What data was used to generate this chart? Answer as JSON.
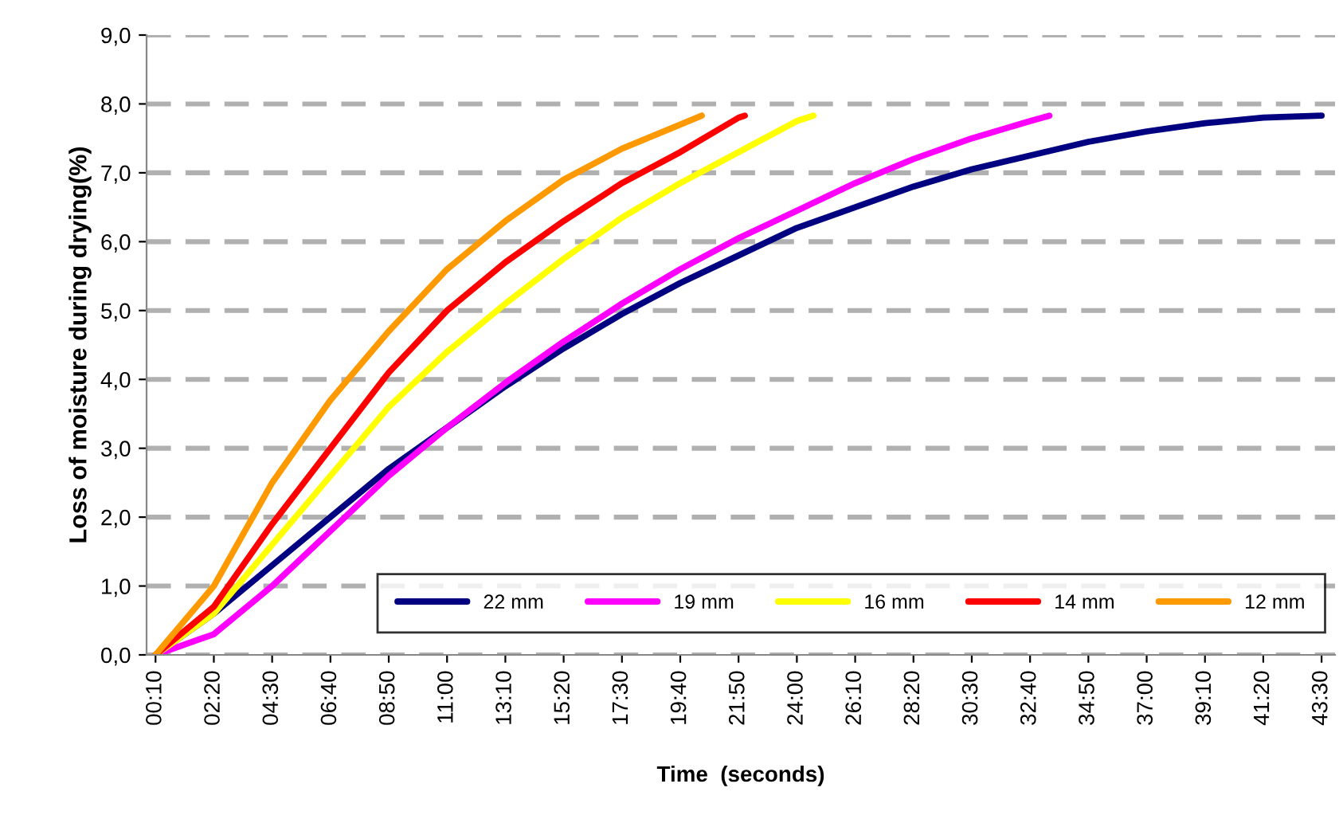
{
  "chart_data": {
    "type": "line",
    "xlabel": "Time  (seconds)",
    "ylabel": "Loss of moisture during drying(%)",
    "xlim": [
      -10,
      2640
    ],
    "ylim": [
      0,
      9
    ],
    "xticks": [
      {
        "value": 10,
        "label": "00:10"
      },
      {
        "value": 140,
        "label": "02:20"
      },
      {
        "value": 270,
        "label": "04:30"
      },
      {
        "value": 400,
        "label": "06:40"
      },
      {
        "value": 530,
        "label": "08:50"
      },
      {
        "value": 660,
        "label": "11:00"
      },
      {
        "value": 790,
        "label": "13:10"
      },
      {
        "value": 920,
        "label": "15:20"
      },
      {
        "value": 1050,
        "label": "17:30"
      },
      {
        "value": 1180,
        "label": "19:40"
      },
      {
        "value": 1310,
        "label": "21:50"
      },
      {
        "value": 1440,
        "label": "24:00"
      },
      {
        "value": 1570,
        "label": "26:10"
      },
      {
        "value": 1700,
        "label": "28:20"
      },
      {
        "value": 1830,
        "label": "30:30"
      },
      {
        "value": 1960,
        "label": "32:40"
      },
      {
        "value": 2090,
        "label": "34:50"
      },
      {
        "value": 2220,
        "label": "37:00"
      },
      {
        "value": 2350,
        "label": "39:10"
      },
      {
        "value": 2480,
        "label": "41:20"
      },
      {
        "value": 2610,
        "label": "43:30"
      }
    ],
    "yticks": [
      {
        "value": 0,
        "label": "0,0"
      },
      {
        "value": 1,
        "label": "1,0"
      },
      {
        "value": 2,
        "label": "2,0"
      },
      {
        "value": 3,
        "label": "3,0"
      },
      {
        "value": 4,
        "label": "4,0"
      },
      {
        "value": 5,
        "label": "5,0"
      },
      {
        "value": 6,
        "label": "6,0"
      },
      {
        "value": 7,
        "label": "7,0"
      },
      {
        "value": 8,
        "label": "8,0"
      },
      {
        "value": 9,
        "label": "9,0"
      }
    ],
    "grid": "y",
    "legend": "bottom right",
    "marker": "none",
    "line_style": "solid",
    "series": [
      {
        "name": "22 mm",
        "color": "#000080",
        "x": [
          10,
          140,
          270,
          400,
          530,
          660,
          790,
          920,
          1050,
          1180,
          1310,
          1440,
          1570,
          1700,
          1830,
          1960,
          2090,
          2220,
          2350,
          2480,
          2610
        ],
        "values": [
          0,
          0.6,
          1.3,
          2.0,
          2.7,
          3.3,
          3.9,
          4.45,
          4.95,
          5.4,
          5.8,
          6.2,
          6.5,
          6.8,
          7.05,
          7.25,
          7.45,
          7.6,
          7.72,
          7.8,
          7.83
        ]
      },
      {
        "name": "19 mm",
        "color": "#ff00ff",
        "x": [
          10,
          140,
          270,
          400,
          530,
          660,
          790,
          920,
          1050,
          1180,
          1310,
          1440,
          1570,
          1700,
          1830,
          1960,
          2003
        ],
        "values": [
          0,
          0.3,
          1.0,
          1.8,
          2.6,
          3.3,
          3.95,
          4.55,
          5.1,
          5.6,
          6.05,
          6.45,
          6.85,
          7.2,
          7.5,
          7.75,
          7.83
        ]
      },
      {
        "name": "16 mm",
        "color": "#ffff00",
        "x": [
          10,
          140,
          270,
          400,
          530,
          660,
          790,
          920,
          1050,
          1180,
          1310,
          1440,
          1477
        ],
        "values": [
          0,
          0.6,
          1.6,
          2.6,
          3.6,
          4.4,
          5.1,
          5.75,
          6.35,
          6.85,
          7.3,
          7.75,
          7.83
        ]
      },
      {
        "name": "14 mm",
        "color": "#ff0000",
        "x": [
          10,
          140,
          270,
          400,
          530,
          660,
          790,
          920,
          1050,
          1180,
          1310,
          1324
        ],
        "values": [
          0,
          0.7,
          1.9,
          3.0,
          4.1,
          5.0,
          5.7,
          6.3,
          6.85,
          7.3,
          7.8,
          7.83
        ]
      },
      {
        "name": "12 mm",
        "color": "#ff9900",
        "x": [
          10,
          140,
          270,
          400,
          530,
          660,
          790,
          920,
          1050,
          1180,
          1228
        ],
        "values": [
          0,
          1.0,
          2.5,
          3.7,
          4.7,
          5.6,
          6.3,
          6.9,
          7.35,
          7.7,
          7.83
        ]
      }
    ]
  }
}
